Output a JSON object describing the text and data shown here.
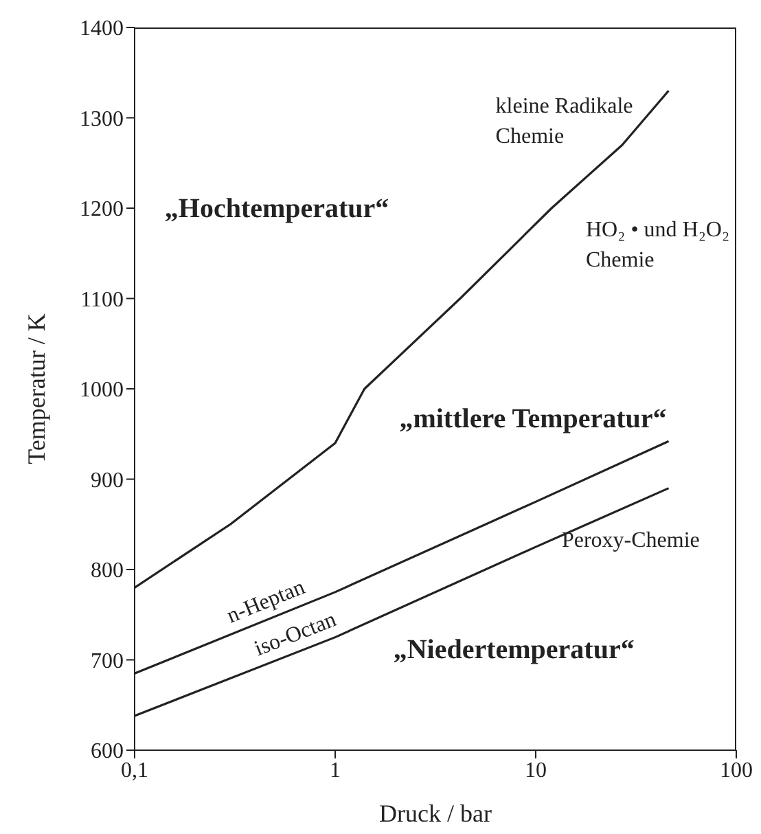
{
  "chart_data": {
    "type": "line",
    "xlabel": "Druck / bar",
    "ylabel": "Temperatur / K",
    "log": "x",
    "grid": false,
    "legend": false,
    "marker": "none",
    "line_style": "solid",
    "xlim": [
      0.1,
      100
    ],
    "xticks": [
      {
        "value": 0.1,
        "label": "0,1"
      },
      1,
      10,
      100
    ],
    "ylim": [
      600,
      1400
    ],
    "yticks": [
      600,
      700,
      800,
      900,
      1000,
      1100,
      1200,
      1300,
      1400
    ],
    "series": [
      {
        "color": "#222222",
        "x": [
          0.1,
          0.3,
          1,
          1.4,
          4.2,
          12,
          27,
          46
        ],
        "values": [
          780,
          850,
          940,
          1000,
          1100,
          1200,
          1270,
          1330
        ]
      },
      {
        "name": "n-Heptan",
        "color": "#222222",
        "x": [
          0.1,
          1,
          10,
          46
        ],
        "values": [
          685,
          775,
          875,
          942
        ]
      },
      {
        "name": "iso-Octan",
        "color": "#222222",
        "x": [
          0.1,
          1,
          10,
          46
        ],
        "values": [
          638,
          725,
          825,
          890
        ]
      }
    ],
    "annotations": [
      "„Hochtemperatur“",
      "„mittlere Temperatur“",
      "„Niedertemperatur“",
      "kleine Radikale\nChemie",
      "HO₂ • und H₂O₂\nChemie",
      "Peroxy-Chemie"
    ]
  }
}
